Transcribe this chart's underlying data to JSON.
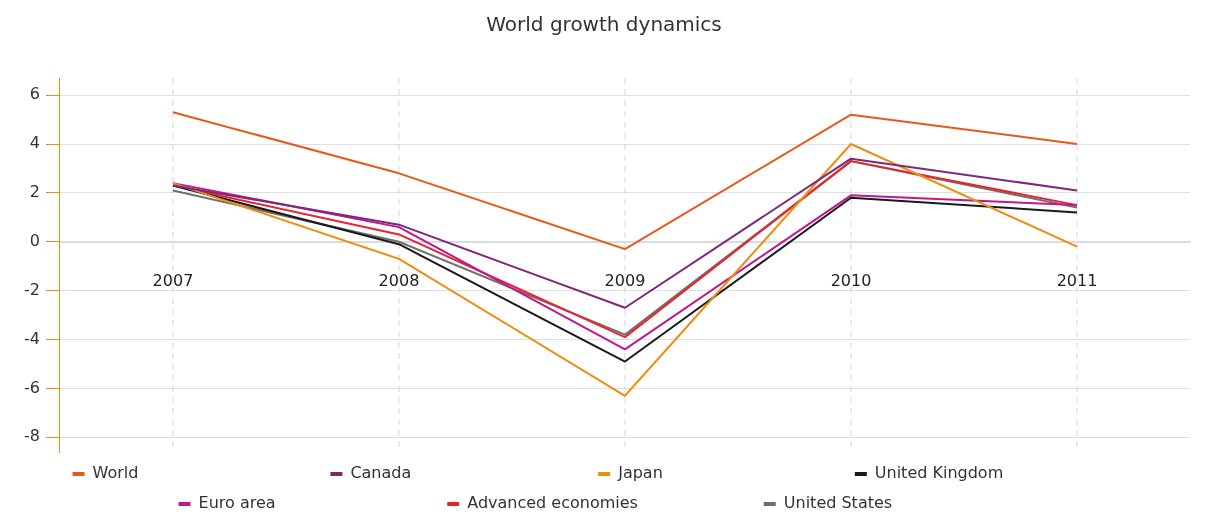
{
  "chart_data": {
    "type": "line",
    "title": "World growth dynamics",
    "categories": [
      "2007",
      "2008",
      "2009",
      "2010",
      "2011"
    ],
    "series": [
      {
        "name": "World",
        "color": "#e8581a",
        "values": [
          5.3,
          2.8,
          -0.3,
          5.2,
          4.0
        ]
      },
      {
        "name": "Canada",
        "color": "#7b2a7b",
        "values": [
          2.3,
          0.7,
          -2.7,
          3.4,
          2.1
        ]
      },
      {
        "name": "Japan",
        "color": "#f08c10",
        "values": [
          2.4,
          -0.7,
          -6.3,
          4.0,
          -0.2
        ]
      },
      {
        "name": "United Kingdom",
        "color": "#1a1a1a",
        "values": [
          2.3,
          -0.1,
          -4.9,
          1.8,
          1.2
        ]
      },
      {
        "name": "Euro area",
        "color": "#c0168e",
        "values": [
          2.4,
          0.6,
          -4.4,
          1.9,
          1.5
        ]
      },
      {
        "name": "Advanced economies",
        "color": "#e8242c",
        "values": [
          2.3,
          0.3,
          -3.9,
          3.3,
          1.5
        ]
      },
      {
        "name": "United States",
        "color": "#707070",
        "values": [
          2.1,
          0.0,
          -3.8,
          3.3,
          1.4
        ]
      }
    ],
    "ylim": [
      -8.6,
      6.7
    ],
    "yticks": [
      -8,
      -6,
      -4,
      -2,
      0,
      2,
      4,
      6
    ],
    "grid": true,
    "legend": "bottom",
    "marker": "none",
    "line_style": "solid"
  }
}
